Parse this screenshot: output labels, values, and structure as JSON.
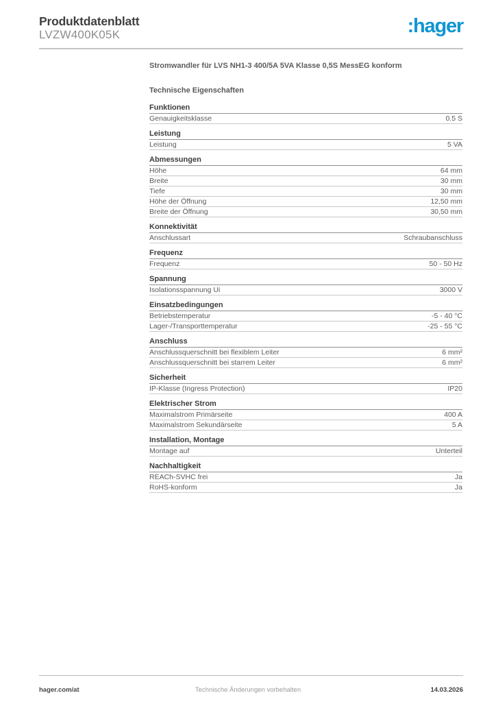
{
  "page": {
    "doc_type": "Produktdatenblatt",
    "product_ref": "LVZW400K05K",
    "brand_logo_text": ":hager",
    "brand_color": "#1095d2"
  },
  "content": {
    "product_title": "Stromwandler für LVS NH1-3 400/5A 5VA Klasse 0,5S MessEG konform",
    "tech_title": "Technische Eigenschaften",
    "sections": [
      {
        "heading": "Funktionen",
        "rows": [
          {
            "label": "Genauigkeitsklasse",
            "value": "0.5 S"
          }
        ]
      },
      {
        "heading": "Leistung",
        "rows": [
          {
            "label": "Leistung",
            "value": "5 VA"
          }
        ]
      },
      {
        "heading": "Abmessungen",
        "rows": [
          {
            "label": "Höhe",
            "value": "64 mm"
          },
          {
            "label": "Breite",
            "value": "30 mm"
          },
          {
            "label": "Tiefe",
            "value": "30 mm"
          },
          {
            "label": "Höhe der Öffnung",
            "value": "12,50 mm"
          },
          {
            "label": "Breite der Öffnung",
            "value": "30,50 mm"
          }
        ]
      },
      {
        "heading": "Konnektivität",
        "rows": [
          {
            "label": "Anschlussart",
            "value": "Schraubanschluss"
          }
        ]
      },
      {
        "heading": "Frequenz",
        "rows": [
          {
            "label": "Frequenz",
            "value": "50 - 50 Hz"
          }
        ]
      },
      {
        "heading": "Spannung",
        "rows": [
          {
            "label": "Isolationsspannung Ui",
            "value": "3000 V"
          }
        ]
      },
      {
        "heading": "Einsatzbedingungen",
        "rows": [
          {
            "label": "Betriebstemperatur",
            "value": "-5 - 40 °C"
          },
          {
            "label": "Lager-/Transporttemperatur",
            "value": "-25 - 55 °C"
          }
        ]
      },
      {
        "heading": "Anschluss",
        "rows": [
          {
            "label": "Anschlussquerschnitt bei flexiblem Leiter",
            "value": "6 mm²"
          },
          {
            "label": "Anschlussquerschnitt bei starrem Leiter",
            "value": "6 mm²"
          }
        ]
      },
      {
        "heading": "Sicherheit",
        "rows": [
          {
            "label": "IP-Klasse (Ingress Protection)",
            "value": "IP20"
          }
        ]
      },
      {
        "heading": "Elektrischer Strom",
        "rows": [
          {
            "label": "Maximalstrom Primärseite",
            "value": "400 A"
          },
          {
            "label": "Maximalstrom Sekundärseite",
            "value": "5 A"
          }
        ]
      },
      {
        "heading": "Installation, Montage",
        "rows": [
          {
            "label": "Montage auf",
            "value": "Unterteil"
          }
        ]
      },
      {
        "heading": "Nachhaltigkeit",
        "rows": [
          {
            "label": "REACh-SVHC frei",
            "value": "Ja"
          },
          {
            "label": "RoHS-konform",
            "value": "Ja"
          }
        ]
      }
    ]
  },
  "footer": {
    "website": "hager.com/at",
    "notice": "Technische Änderungen vorbehalten",
    "date": "14.03.2026"
  }
}
